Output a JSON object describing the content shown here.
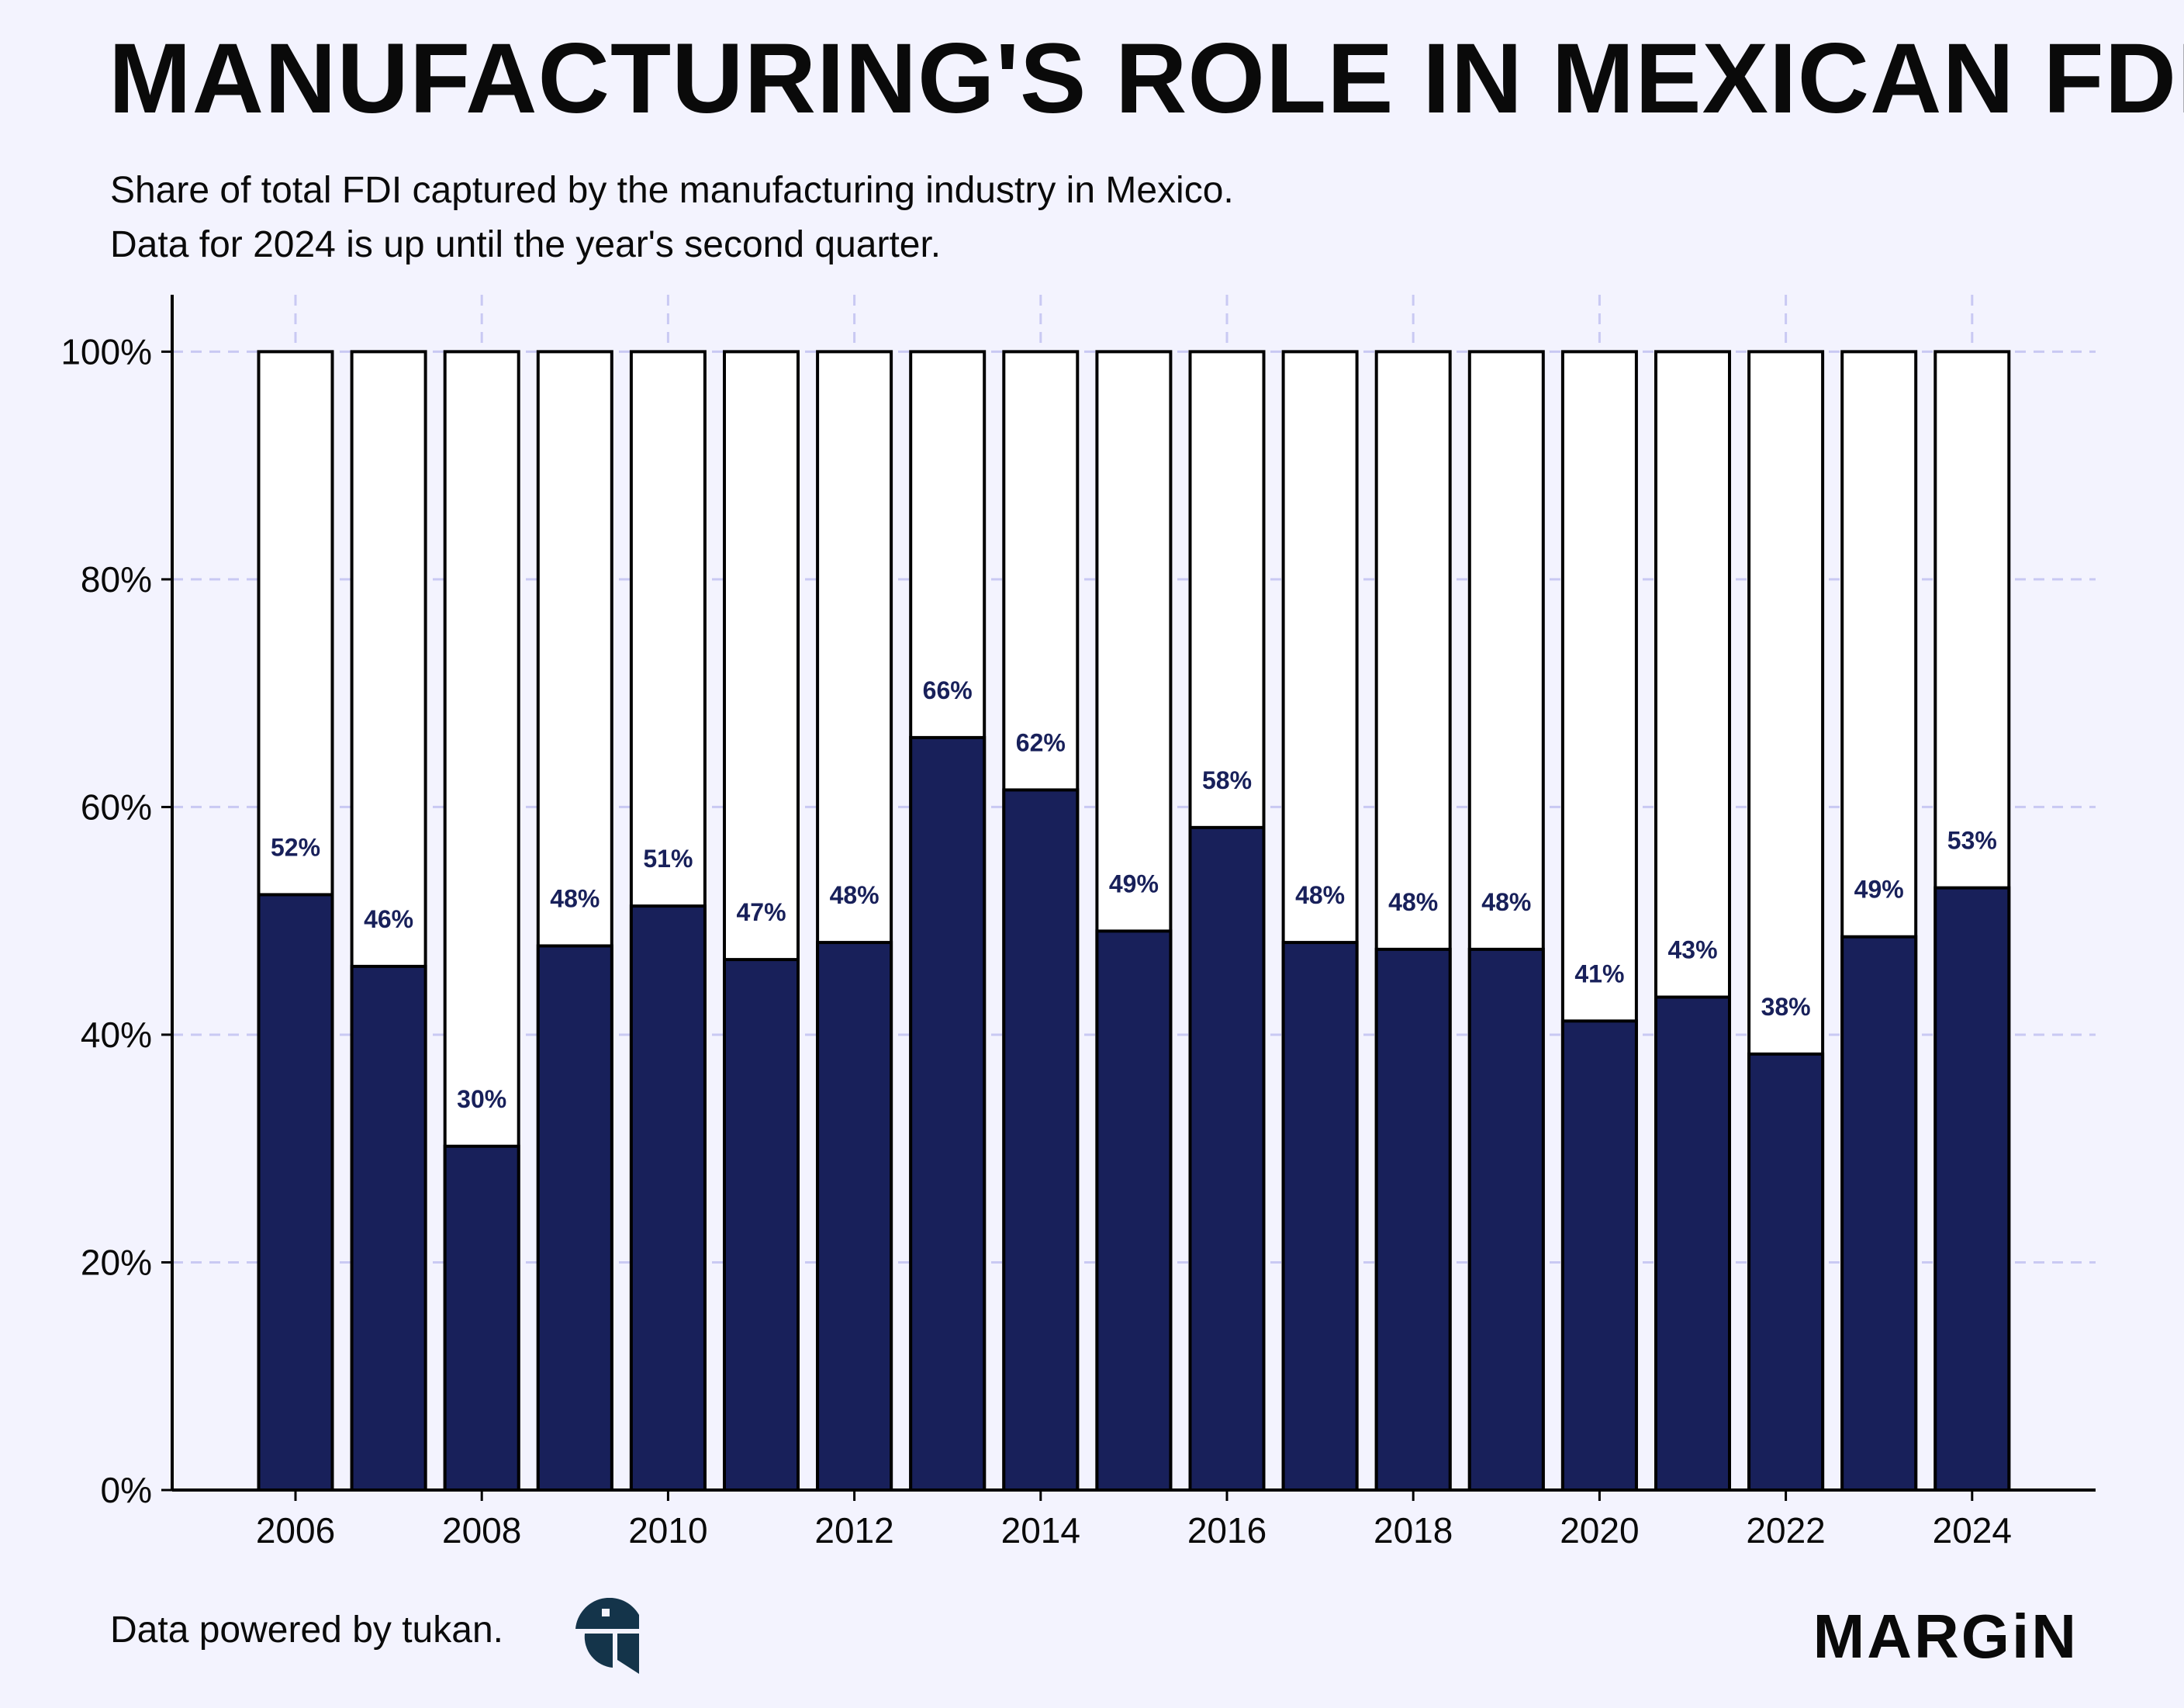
{
  "header": {
    "title": "MANUFACTURING'S ROLE IN MEXICAN FDI",
    "subtitle_line1": "Share of total FDI captured by the manufacturing industry in Mexico.",
    "subtitle_line2": "Data for 2024 is up until the year's second quarter."
  },
  "footer": {
    "source": "Data powered by tukan.",
    "brand": "MARGiN"
  },
  "colors": {
    "background": "#f3f3fe",
    "bar_fill": "#18205a",
    "bar_remainder": "#ffffff",
    "bar_outline": "#000000",
    "grid": "#c9c9f3",
    "label_text": "#18205a",
    "tukan_logo": "#14344a"
  },
  "icons": {
    "source_logo": "tukan-logo"
  },
  "chart_data": {
    "type": "bar",
    "stacked_to_total": true,
    "title": "MANUFACTURING'S ROLE IN MEXICAN FDI",
    "xlabel": "",
    "ylabel": "",
    "categories": [
      "2006",
      "2007",
      "2008",
      "2009",
      "2010",
      "2011",
      "2012",
      "2013",
      "2014",
      "2015",
      "2016",
      "2017",
      "2018",
      "2019",
      "2020",
      "2021",
      "2022",
      "2023",
      "2024"
    ],
    "values": [
      52.3,
      46.0,
      30.2,
      47.8,
      51.3,
      46.6,
      48.1,
      66.1,
      61.5,
      49.1,
      58.2,
      48.1,
      47.5,
      47.5,
      41.2,
      43.3,
      38.3,
      48.6,
      52.9
    ],
    "data_labels": [
      "52%",
      "46%",
      "30%",
      "48%",
      "51%",
      "47%",
      "48%",
      "66%",
      "62%",
      "49%",
      "58%",
      "48%",
      "48%",
      "48%",
      "41%",
      "43%",
      "38%",
      "49%",
      "53%"
    ],
    "total": 100,
    "ylim": [
      0,
      105
    ],
    "yticks": [
      0,
      20,
      40,
      60,
      80,
      100
    ],
    "ytick_labels": [
      "0%",
      "20%",
      "40%",
      "60%",
      "80%",
      "100%"
    ],
    "xticks": [
      "2006",
      "2008",
      "2010",
      "2012",
      "2014",
      "2016",
      "2018",
      "2020",
      "2022",
      "2024"
    ],
    "grid": true,
    "legend": "none"
  }
}
